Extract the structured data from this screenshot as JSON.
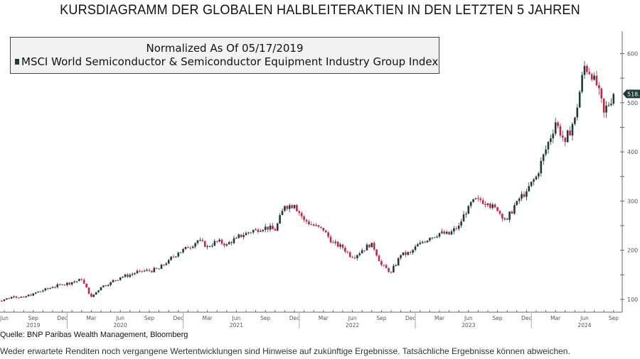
{
  "title": "KURSDIAGRAMM DER GLOBALEN HALBLEITERAKTIEN IN DEN LETZTEN 5 JAHREN",
  "legend": {
    "line1": "Normalized As Of 05/17/2019",
    "line2": "MSCI World Semiconductor & Semiconductor Equipment Industry Group Index"
  },
  "source": "Quelle: BNP Paribas Wealth Management, Bloomberg",
  "disclaimer": "Weder erwartete Renditen noch vergangene Wertentwicklungen sind Hinweise auf zukünftige Ergebnisse. Tatsächliche Ergebnisse können abweichen.",
  "chart_data": {
    "type": "candlestick",
    "title": "",
    "ylim": [
      75,
      640
    ],
    "y_ticks": [
      100,
      200,
      300,
      400,
      500,
      600
    ],
    "last_value_label": "518.",
    "month_labels": [
      "Jun",
      "Sep",
      "Dec",
      "Mar",
      "Jun",
      "Sep",
      "Dec",
      "Mar",
      "Jun",
      "Sep",
      "Dec",
      "Mar",
      "Jun",
      "Sep",
      "Dec",
      "Mar",
      "Jun",
      "Sep",
      "Dec",
      "Mar",
      "Jun",
      "Sep"
    ],
    "year_labels": [
      "2019",
      "2020",
      "2021",
      "2022",
      "2023",
      "2024"
    ],
    "start_month": "2019-06",
    "colors": {
      "up": "#1f3b36",
      "down": "#c0284a",
      "axis": "#666666"
    },
    "monthly_close": [
      100,
      106,
      104,
      112,
      118,
      125,
      130,
      135,
      140,
      105,
      125,
      135,
      145,
      150,
      158,
      158,
      162,
      180,
      195,
      205,
      220,
      208,
      218,
      212,
      225,
      235,
      242,
      248,
      240,
      290,
      292,
      262,
      250,
      240,
      215,
      205,
      185,
      200,
      215,
      170,
      155,
      190,
      195,
      215,
      225,
      235,
      232,
      250,
      290,
      305,
      295,
      280,
      262,
      300,
      320,
      350,
      405,
      460,
      420,
      470,
      575,
      555,
      480,
      518
    ]
  }
}
